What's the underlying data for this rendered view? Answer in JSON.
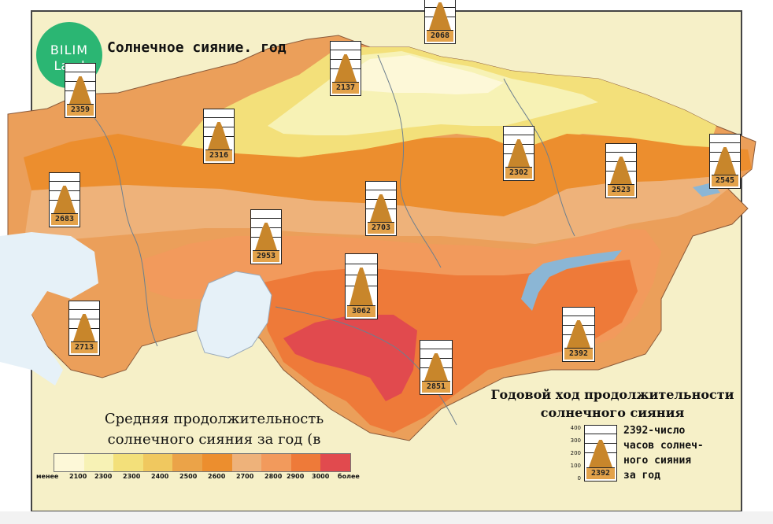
{
  "map": {
    "title": "Солнечное сияние. год",
    "logo": {
      "line1": "BILIM",
      "line2": "Land"
    },
    "colors": {
      "background": "#f6f0c8",
      "lt2100": "#fdf8d8",
      "c2100_2300": "#f7f2b5",
      "c2300_2400": "#f3e07a",
      "c2400_2500": "#f0c85f",
      "c2500_2600": "#eba348",
      "c2600_2700": "#ec8e2e",
      "c2700_2800": "#eeb27a",
      "c2800_2900": "#f29a5c",
      "c2900_3000": "#ee7a39",
      "gt3000": "#e14a4e",
      "water": "#e6f1f8",
      "lake": "#8bb6d5"
    },
    "stations": [
      {
        "value": "2068"
      },
      {
        "value": "2137"
      },
      {
        "value": "2359"
      },
      {
        "value": "2316"
      },
      {
        "value": "2302"
      },
      {
        "value": "2523"
      },
      {
        "value": "2545"
      },
      {
        "value": "2683"
      },
      {
        "value": "2703"
      },
      {
        "value": "2953"
      },
      {
        "value": "3062"
      },
      {
        "value": "2713"
      },
      {
        "value": "2392"
      },
      {
        "value": "2851"
      }
    ]
  },
  "legend": {
    "title_line1": "Средняя продолжительность",
    "title_line2": "солнечного сияния за год (в часах)",
    "scale_labels": [
      "менее",
      "2100",
      "2300",
      "2300",
      "2400",
      "2500",
      "2600",
      "2700",
      "2800",
      "2900",
      "3000",
      "более"
    ]
  },
  "note": {
    "title_line1": "Годовой ход продолжительности",
    "title_line2": "солнечного сияния",
    "example_value": "2392",
    "axis_ticks": [
      "400",
      "300",
      "200",
      "100",
      "0"
    ],
    "text": "2392-число\nчасов солнеч-\nного сияния\nза год"
  }
}
